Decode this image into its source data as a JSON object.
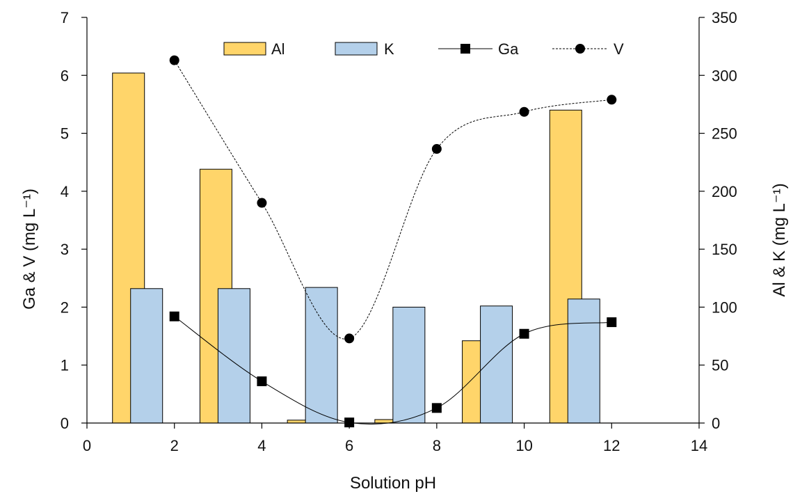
{
  "chart_data": {
    "type": "bar+line",
    "title": "",
    "xlabel": "Solution pH",
    "ylabel_left": "Ga & V  (mg L⁻¹)",
    "ylabel_right": "Al & K (mg L⁻¹)",
    "xlim": [
      0,
      14
    ],
    "xticks": [
      0,
      2,
      4,
      6,
      8,
      10,
      12,
      14
    ],
    "ylim_left": [
      0,
      7
    ],
    "yticks_left": [
      0,
      1,
      2,
      3,
      4,
      5,
      6,
      7
    ],
    "ylim_right": [
      0,
      350
    ],
    "yticks_right": [
      0,
      50,
      100,
      150,
      200,
      250,
      300,
      350
    ],
    "grid": false,
    "legend_position": "top",
    "x": [
      2,
      4,
      6,
      8,
      10,
      12
    ],
    "bar_series": [
      {
        "name": "Al",
        "axis": "right",
        "color": "#FFD56A",
        "values": [
          302,
          219,
          2.5,
          3,
          71,
          270
        ]
      },
      {
        "name": "K",
        "axis": "right",
        "color": "#B4D0EA",
        "values": [
          116,
          116,
          117,
          100,
          101,
          107
        ]
      }
    ],
    "line_series": [
      {
        "name": "Ga",
        "axis": "left",
        "marker": "square",
        "style": "solid",
        "color": "#000000",
        "values": [
          1.84,
          0.72,
          0.01,
          0.26,
          1.54,
          1.74
        ]
      },
      {
        "name": "V",
        "axis": "left",
        "marker": "circle",
        "style": "dotted",
        "color": "#000000",
        "values": [
          6.26,
          3.8,
          1.46,
          4.73,
          5.37,
          5.58
        ]
      }
    ]
  }
}
